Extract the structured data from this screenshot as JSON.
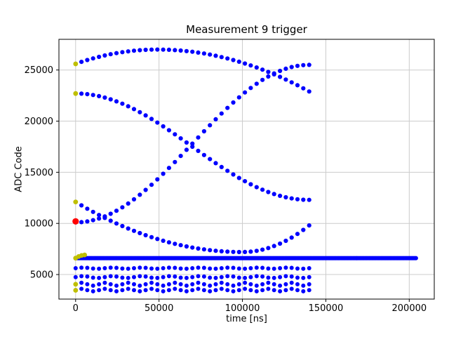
{
  "chart_data": {
    "type": "scatter",
    "title": "Measurement 9 trigger",
    "xlabel": "time [ns]",
    "ylabel": "ADC Code",
    "xlim": [
      -10000,
      215000
    ],
    "ylim": [
      2600,
      28000
    ],
    "x_ticks": [
      0,
      50000,
      100000,
      150000,
      200000
    ],
    "y_ticks": [
      5000,
      10000,
      15000,
      20000,
      25000
    ],
    "grid": true,
    "legend": "none",
    "colors": {
      "main": "#0000ff",
      "first_samples": "#bfbf00",
      "trigger": "#ff0000",
      "grid": "#cccccc",
      "spine": "#000000",
      "text": "#000000"
    },
    "series": [
      {
        "name": "trace-top-arc",
        "x0": 0,
        "step": 3500,
        "r": 3.1,
        "y": [
          25600,
          25793,
          25972,
          26136,
          26286,
          26421,
          26543,
          26650,
          26743,
          26821,
          26886,
          26936,
          26971,
          26993,
          27000,
          26994,
          26976,
          26945,
          26903,
          26848,
          26782,
          26703,
          26612,
          26509,
          26393,
          26266,
          26127,
          25975,
          25811,
          25635,
          25447,
          25247,
          25035,
          24811,
          24574,
          24325,
          24064,
          23792,
          23507,
          23209,
          22900
        ]
      },
      {
        "name": "trace-falling",
        "x0": 0,
        "step": 3500,
        "r": 3.1,
        "y": [
          22700,
          22684,
          22636,
          22556,
          22446,
          22304,
          22133,
          21934,
          21707,
          21454,
          21177,
          20877,
          20556,
          20217,
          19861,
          19490,
          19107,
          18714,
          18313,
          17908,
          17500,
          17092,
          16687,
          16286,
          15893,
          15510,
          15139,
          14783,
          14444,
          14123,
          13823,
          13546,
          13293,
          13066,
          12867,
          12696,
          12555,
          12444,
          12364,
          12316,
          12300
        ]
      },
      {
        "name": "trace-rising",
        "x0": 0,
        "step": 3500,
        "r": 3.1,
        "y": [
          10100,
          10124,
          10195,
          10313,
          10477,
          10686,
          10939,
          11235,
          11571,
          11945,
          12355,
          12799,
          13274,
          13777,
          14304,
          14853,
          15421,
          16002,
          16596,
          17196,
          17800,
          18404,
          19004,
          19598,
          20179,
          20747,
          21296,
          21823,
          22326,
          22801,
          23245,
          23655,
          24029,
          24365,
          24661,
          24914,
          25123,
          25287,
          25405,
          25476,
          25500
        ]
      },
      {
        "name": "trace-dip",
        "x0": 0,
        "step": 3500,
        "r": 3.1,
        "y": [
          12100,
          11763,
          11438,
          11125,
          10824,
          10535,
          10258,
          9993,
          9740,
          9499,
          9270,
          9053,
          8848,
          8655,
          8474,
          8305,
          8149,
          8004,
          7871,
          7750,
          7641,
          7544,
          7459,
          7386,
          7325,
          7277,
          7240,
          7215,
          7202,
          7204,
          7241,
          7317,
          7434,
          7590,
          7787,
          8023,
          8299,
          8614,
          8970,
          9365,
          9800
        ]
      }
    ],
    "rows": [
      {
        "name": "baseline-band",
        "y": 6600,
        "x_start": 0,
        "x_end": 204000,
        "step": 800,
        "ripple": 0,
        "ripple_period": 1,
        "r": 3.1
      },
      {
        "name": "row-5600",
        "y": 5620,
        "x_start": 0,
        "x_end": 140000,
        "step": 3500,
        "ripple": 60,
        "ripple_period": 17500,
        "r": 3.0
      },
      {
        "name": "row-4750",
        "y": 4750,
        "x_start": 0,
        "x_end": 140000,
        "step": 3500,
        "ripple": 90,
        "ripple_period": 17500,
        "r": 3.0
      },
      {
        "name": "row-4050",
        "y": 4050,
        "x_start": 0,
        "x_end": 140000,
        "step": 3500,
        "ripple": 140,
        "ripple_period": 14000,
        "r": 3.0
      },
      {
        "name": "row-3450",
        "y": 3480,
        "x_start": 0,
        "x_end": 140000,
        "step": 3500,
        "ripple": 120,
        "ripple_period": 14000,
        "r": 3.0
      }
    ],
    "highlight_points": {
      "first_samples_yellow": [
        [
          0,
          25600
        ],
        [
          0,
          22700
        ],
        [
          0,
          12100
        ],
        [
          0,
          6600
        ],
        [
          1800,
          6760
        ],
        [
          3600,
          6860
        ],
        [
          5400,
          6920
        ],
        [
          0,
          4050
        ],
        [
          0,
          3460
        ]
      ],
      "trigger_red": [
        [
          0,
          10200
        ]
      ]
    }
  }
}
